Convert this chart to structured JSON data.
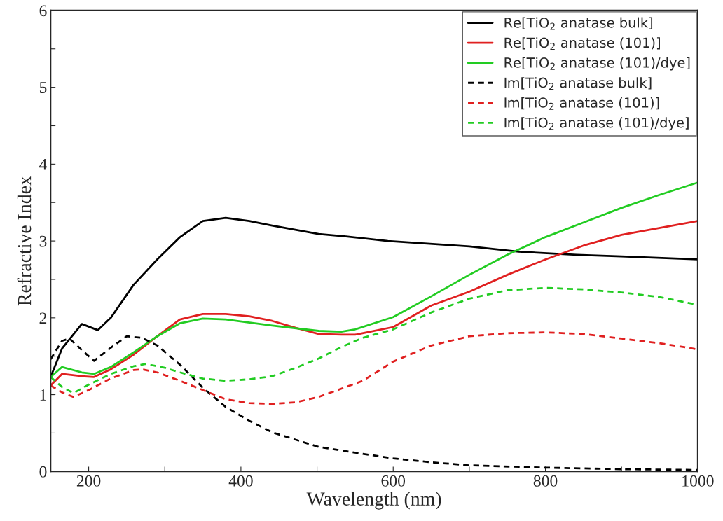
{
  "chart_data": {
    "type": "line",
    "xlabel": "Wavelength (nm)",
    "ylabel": "Refractive Index",
    "xlim": [
      150,
      1000
    ],
    "ylim": [
      0,
      6
    ],
    "xticks": [
      200,
      {
        "value": 300,
        "label": null
      },
      400,
      {
        "value": 500,
        "label": null
      },
      600,
      {
        "value": 700,
        "label": null
      },
      800,
      {
        "value": 900,
        "label": null
      },
      1000
    ],
    "yticks": [
      0,
      {
        "value": 0.5,
        "label": null
      },
      1,
      {
        "value": 1.5,
        "label": null
      },
      2,
      {
        "value": 2.5,
        "label": null
      },
      3,
      {
        "value": 3.5,
        "label": null
      },
      4,
      {
        "value": 4.5,
        "label": null
      },
      5,
      {
        "value": 5.5,
        "label": null
      },
      6
    ],
    "grid": false,
    "legend": "top right",
    "series": [
      {
        "name": "Re[TiO$_{2}$ anatase bulk]",
        "color": "#000000",
        "line_style": "solid",
        "x": [
          150,
          165,
          191,
          212,
          229,
          259,
          290,
          320,
          350,
          380,
          411,
          441,
          502,
          538,
          593,
          700,
          765,
          841,
          900,
          1000
        ],
        "values": [
          1.23,
          1.6,
          1.92,
          1.84,
          2.0,
          2.43,
          2.76,
          3.05,
          3.26,
          3.3,
          3.26,
          3.2,
          3.09,
          3.06,
          3.0,
          2.93,
          2.86,
          2.82,
          2.8,
          2.76
        ]
      },
      {
        "name": "Re[TiO$_{2}$ anatase (101)]",
        "color": "#e02020",
        "line_style": "solid",
        "x": [
          150,
          165,
          191,
          207,
          229,
          259,
          290,
          320,
          350,
          380,
          411,
          441,
          472,
          502,
          532,
          550,
          600,
          650,
          700,
          750,
          800,
          850,
          900,
          1000
        ],
        "values": [
          1.12,
          1.27,
          1.24,
          1.23,
          1.33,
          1.52,
          1.76,
          1.98,
          2.05,
          2.05,
          2.02,
          1.96,
          1.87,
          1.79,
          1.78,
          1.78,
          1.88,
          2.16,
          2.34,
          2.56,
          2.76,
          2.94,
          3.08,
          3.26
        ]
      },
      {
        "name": "Re[TiO$_{2}$ anatase (101)/dye]",
        "color": "#22cc22",
        "line_style": "solid",
        "x": [
          150,
          165,
          191,
          207,
          229,
          259,
          290,
          320,
          350,
          380,
          441,
          502,
          532,
          550,
          600,
          650,
          700,
          750,
          800,
          850,
          900,
          950,
          1000
        ],
        "values": [
          1.23,
          1.36,
          1.29,
          1.27,
          1.36,
          1.55,
          1.76,
          1.93,
          1.99,
          1.98,
          1.9,
          1.83,
          1.82,
          1.85,
          2.01,
          2.28,
          2.56,
          2.82,
          3.05,
          3.24,
          3.43,
          3.6,
          3.76
        ]
      },
      {
        "name": "Im[TiO$_{2}$ anatase bulk]",
        "color": "#000000",
        "line_style": "dashed",
        "x": [
          150,
          165,
          175,
          191,
          207,
          229,
          250,
          270,
          290,
          320,
          350,
          380,
          411,
          441,
          502,
          560,
          600,
          650,
          700,
          800,
          900,
          1000
        ],
        "values": [
          1.46,
          1.7,
          1.73,
          1.58,
          1.44,
          1.61,
          1.76,
          1.74,
          1.64,
          1.39,
          1.09,
          0.84,
          0.66,
          0.51,
          0.32,
          0.23,
          0.17,
          0.12,
          0.08,
          0.05,
          0.03,
          0.02
        ]
      },
      {
        "name": "Im[TiO$_{2}$ anatase (101)]",
        "color": "#e02020",
        "line_style": "dashed",
        "x": [
          150,
          165,
          180,
          200,
          229,
          259,
          270,
          290,
          320,
          350,
          380,
          411,
          441,
          472,
          502,
          538,
          560,
          600,
          650,
          700,
          750,
          800,
          850,
          900,
          950,
          1000
        ],
        "values": [
          1.12,
          1.03,
          0.97,
          1.06,
          1.21,
          1.32,
          1.33,
          1.29,
          1.18,
          1.06,
          0.94,
          0.89,
          0.88,
          0.9,
          0.97,
          1.1,
          1.18,
          1.43,
          1.64,
          1.76,
          1.8,
          1.81,
          1.79,
          1.73,
          1.67,
          1.59
        ]
      },
      {
        "name": "Im[TiO$_{2}$ anatase (101)/dye]",
        "color": "#22cc22",
        "line_style": "dashed",
        "x": [
          150,
          165,
          180,
          200,
          229,
          259,
          275,
          300,
          320,
          350,
          380,
          411,
          441,
          472,
          502,
          532,
          560,
          600,
          650,
          700,
          750,
          800,
          850,
          900,
          950,
          1000
        ],
        "values": [
          1.23,
          1.1,
          1.02,
          1.13,
          1.27,
          1.37,
          1.4,
          1.35,
          1.29,
          1.21,
          1.18,
          1.2,
          1.24,
          1.35,
          1.47,
          1.62,
          1.74,
          1.85,
          2.07,
          2.25,
          2.36,
          2.39,
          2.37,
          2.33,
          2.27,
          2.17
        ]
      }
    ]
  }
}
